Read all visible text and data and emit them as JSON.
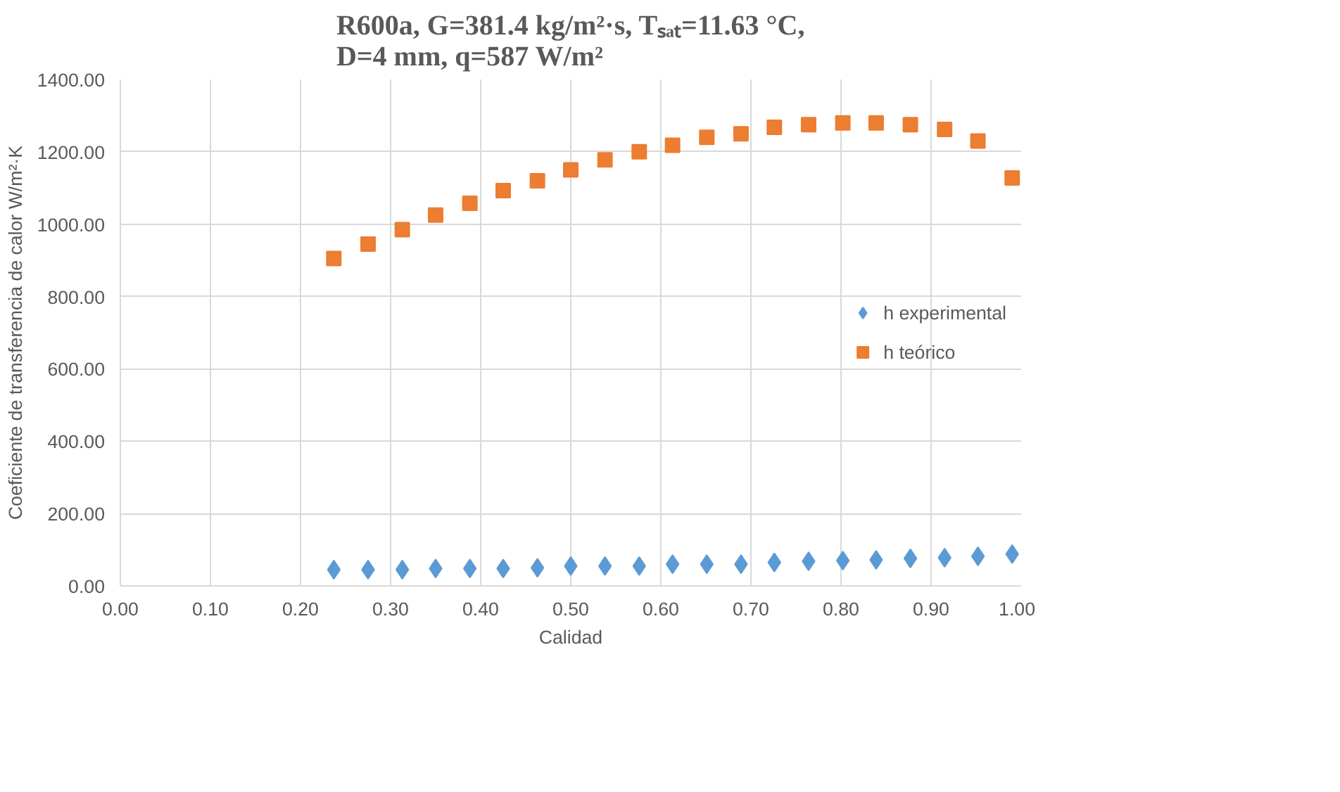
{
  "chart_data": {
    "type": "scatter",
    "title": "R600a, G=381.4 kg/m²·s, Tₛₐₜ=11.63 °C,\nD=4 mm, q=587 W/m²",
    "xlabel": "Calidad",
    "ylabel": "Coeficiente de transferencia de calor W/m²·K",
    "x": [
      0.237,
      0.275,
      0.313,
      0.35,
      0.388,
      0.425,
      0.463,
      0.5,
      0.538,
      0.576,
      0.613,
      0.651,
      0.689,
      0.726,
      0.764,
      0.802,
      0.839,
      0.877,
      0.915,
      0.952,
      0.99
    ],
    "series": [
      {
        "name": "h experimental",
        "color": "#5b9bd5",
        "marker": "diamond",
        "values": [
          45,
          45,
          45,
          48,
          48,
          48,
          50,
          55,
          55,
          55,
          60,
          60,
          60,
          65,
          68,
          70,
          72,
          76,
          78,
          82,
          88
        ]
      },
      {
        "name": "h teórico",
        "color": "#ed7d31",
        "marker": "square",
        "values": [
          905,
          945,
          985,
          1025,
          1058,
          1093,
          1120,
          1150,
          1178,
          1200,
          1218,
          1240,
          1250,
          1268,
          1275,
          1280,
          1280,
          1275,
          1262,
          1230,
          1128
        ]
      }
    ],
    "xlim": [
      0,
      1
    ],
    "xticks": [
      {
        "value": 0,
        "label": "0.00"
      },
      {
        "value": 0.1,
        "label": "0.10"
      },
      {
        "value": 0.2,
        "label": "0.20"
      },
      {
        "value": 0.3,
        "label": "0.30"
      },
      {
        "value": 0.4,
        "label": "0.40"
      },
      {
        "value": 0.5,
        "label": "0.50"
      },
      {
        "value": 0.6,
        "label": "0.60"
      },
      {
        "value": 0.7,
        "label": "0.70"
      },
      {
        "value": 0.8,
        "label": "0.80"
      },
      {
        "value": 0.9,
        "label": "0.90"
      },
      {
        "value": 1,
        "label": "1.00"
      }
    ],
    "ylim": [
      0,
      1400
    ],
    "yticks": [
      {
        "value": 0,
        "label": "0.00"
      },
      {
        "value": 200,
        "label": "200.00"
      },
      {
        "value": 400,
        "label": "400.00"
      },
      {
        "value": 600,
        "label": "600.00"
      },
      {
        "value": 800,
        "label": "800.00"
      },
      {
        "value": 1000,
        "label": "1000.00"
      },
      {
        "value": 1200,
        "label": "1200.00"
      },
      {
        "value": 1400,
        "label": "1400.00"
      }
    ],
    "grid": true,
    "legend": "right"
  }
}
